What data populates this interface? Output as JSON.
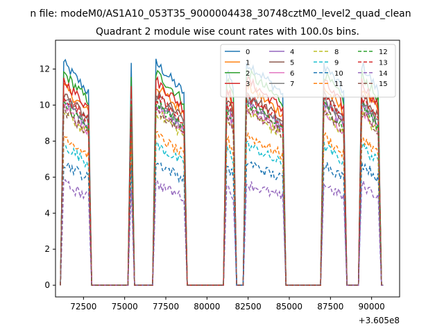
{
  "chart_data": {
    "type": "line",
    "suptitle": "n file: modeM0/AS1A10_053T35_9000004438_30748cztM0_level2_quad_clean",
    "title": "Quadrant 2 module wise count rates with 100.0s bins.",
    "xlabel": "",
    "ylabel": "",
    "x_offset_label": "+3.605e8",
    "xlim": [
      70800,
      91700
    ],
    "ylim": [
      -0.65,
      13.6
    ],
    "xticks": [
      72500,
      75000,
      77500,
      80000,
      82500,
      85000,
      87500,
      90000
    ],
    "xtick_labels": [
      "72500",
      "75000",
      "77500",
      "80000",
      "82500",
      "85000",
      "87500",
      "90000"
    ],
    "yticks": [
      0,
      2,
      4,
      6,
      8,
      10,
      12
    ],
    "ytick_labels": [
      "0",
      "2",
      "4",
      "6",
      "8",
      "10",
      "12"
    ],
    "grid": false,
    "legend_position": "top-right",
    "legend_columns": 4,
    "segments": [
      {
        "start": 71100,
        "end": 73000
      },
      {
        "start": 75200,
        "end": 75600
      },
      {
        "start": 76700,
        "end": 78800
      },
      {
        "start": 81000,
        "end": 81800
      },
      {
        "start": 82200,
        "end": 84800
      },
      {
        "start": 86900,
        "end": 88500
      },
      {
        "start": 89200,
        "end": 90600
      }
    ],
    "series": [
      {
        "name": "0",
        "color": "#1f77b4",
        "dash": "solid",
        "level": 11.4
      },
      {
        "name": "1",
        "color": "#ff7f0e",
        "dash": "solid",
        "level": 10.2
      },
      {
        "name": "2",
        "color": "#2ca02c",
        "dash": "solid",
        "level": 10.9
      },
      {
        "name": "3",
        "color": "#d62728",
        "dash": "solid",
        "level": 10.5
      },
      {
        "name": "4",
        "color": "#9467bd",
        "dash": "solid",
        "level": 9.4
      },
      {
        "name": "5",
        "color": "#8c564b",
        "dash": "solid",
        "level": 9.8
      },
      {
        "name": "6",
        "color": "#e377c2",
        "dash": "solid",
        "level": 9.1
      },
      {
        "name": "7",
        "color": "#7f7f7f",
        "dash": "solid",
        "level": 9.6
      },
      {
        "name": "8",
        "color": "#bcbd22",
        "dash": "dashed",
        "level": 8.9
      },
      {
        "name": "9",
        "color": "#17becf",
        "dash": "dashed",
        "level": 7.2
      },
      {
        "name": "10",
        "color": "#1f77b4",
        "dash": "dashed",
        "level": 6.3
      },
      {
        "name": "11",
        "color": "#ff7f0e",
        "dash": "dashed",
        "level": 7.7
      },
      {
        "name": "12",
        "color": "#2ca02c",
        "dash": "dashed",
        "level": 9.3
      },
      {
        "name": "13",
        "color": "#d62728",
        "dash": "dashed",
        "level": 9.7
      },
      {
        "name": "14",
        "color": "#9467bd",
        "dash": "dashed",
        "level": 5.2
      },
      {
        "name": "15",
        "color": "#8c564b",
        "dash": "dashed",
        "level": 9.0
      }
    ]
  }
}
